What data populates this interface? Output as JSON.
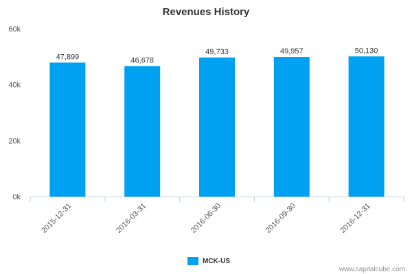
{
  "chart_data": {
    "type": "bar",
    "title": "Revenues History",
    "xlabel": "",
    "ylabel": "",
    "categories": [
      "2015-12-31",
      "2016-03-31",
      "2016-06-30",
      "2016-09-30",
      "2016-12-31"
    ],
    "series": [
      {
        "name": "MCK-US",
        "values": [
          47899,
          46678,
          49733,
          49957,
          50130
        ],
        "data_labels": [
          "47,899",
          "46,678",
          "49,733",
          "49,957",
          "50,130"
        ],
        "color": "#00a1f1"
      }
    ],
    "ylim": [
      0,
      60000
    ],
    "yticks": [
      0,
      20000,
      40000,
      60000
    ],
    "ytick_labels": [
      "0k",
      "20k",
      "40k",
      "60k"
    ],
    "grid": false,
    "legend_position": "bottom"
  },
  "credit": "www.capitalcube.com",
  "colors": {
    "bar": "#00a1f1",
    "axis": "#c0d0e0",
    "text": "#333333"
  }
}
